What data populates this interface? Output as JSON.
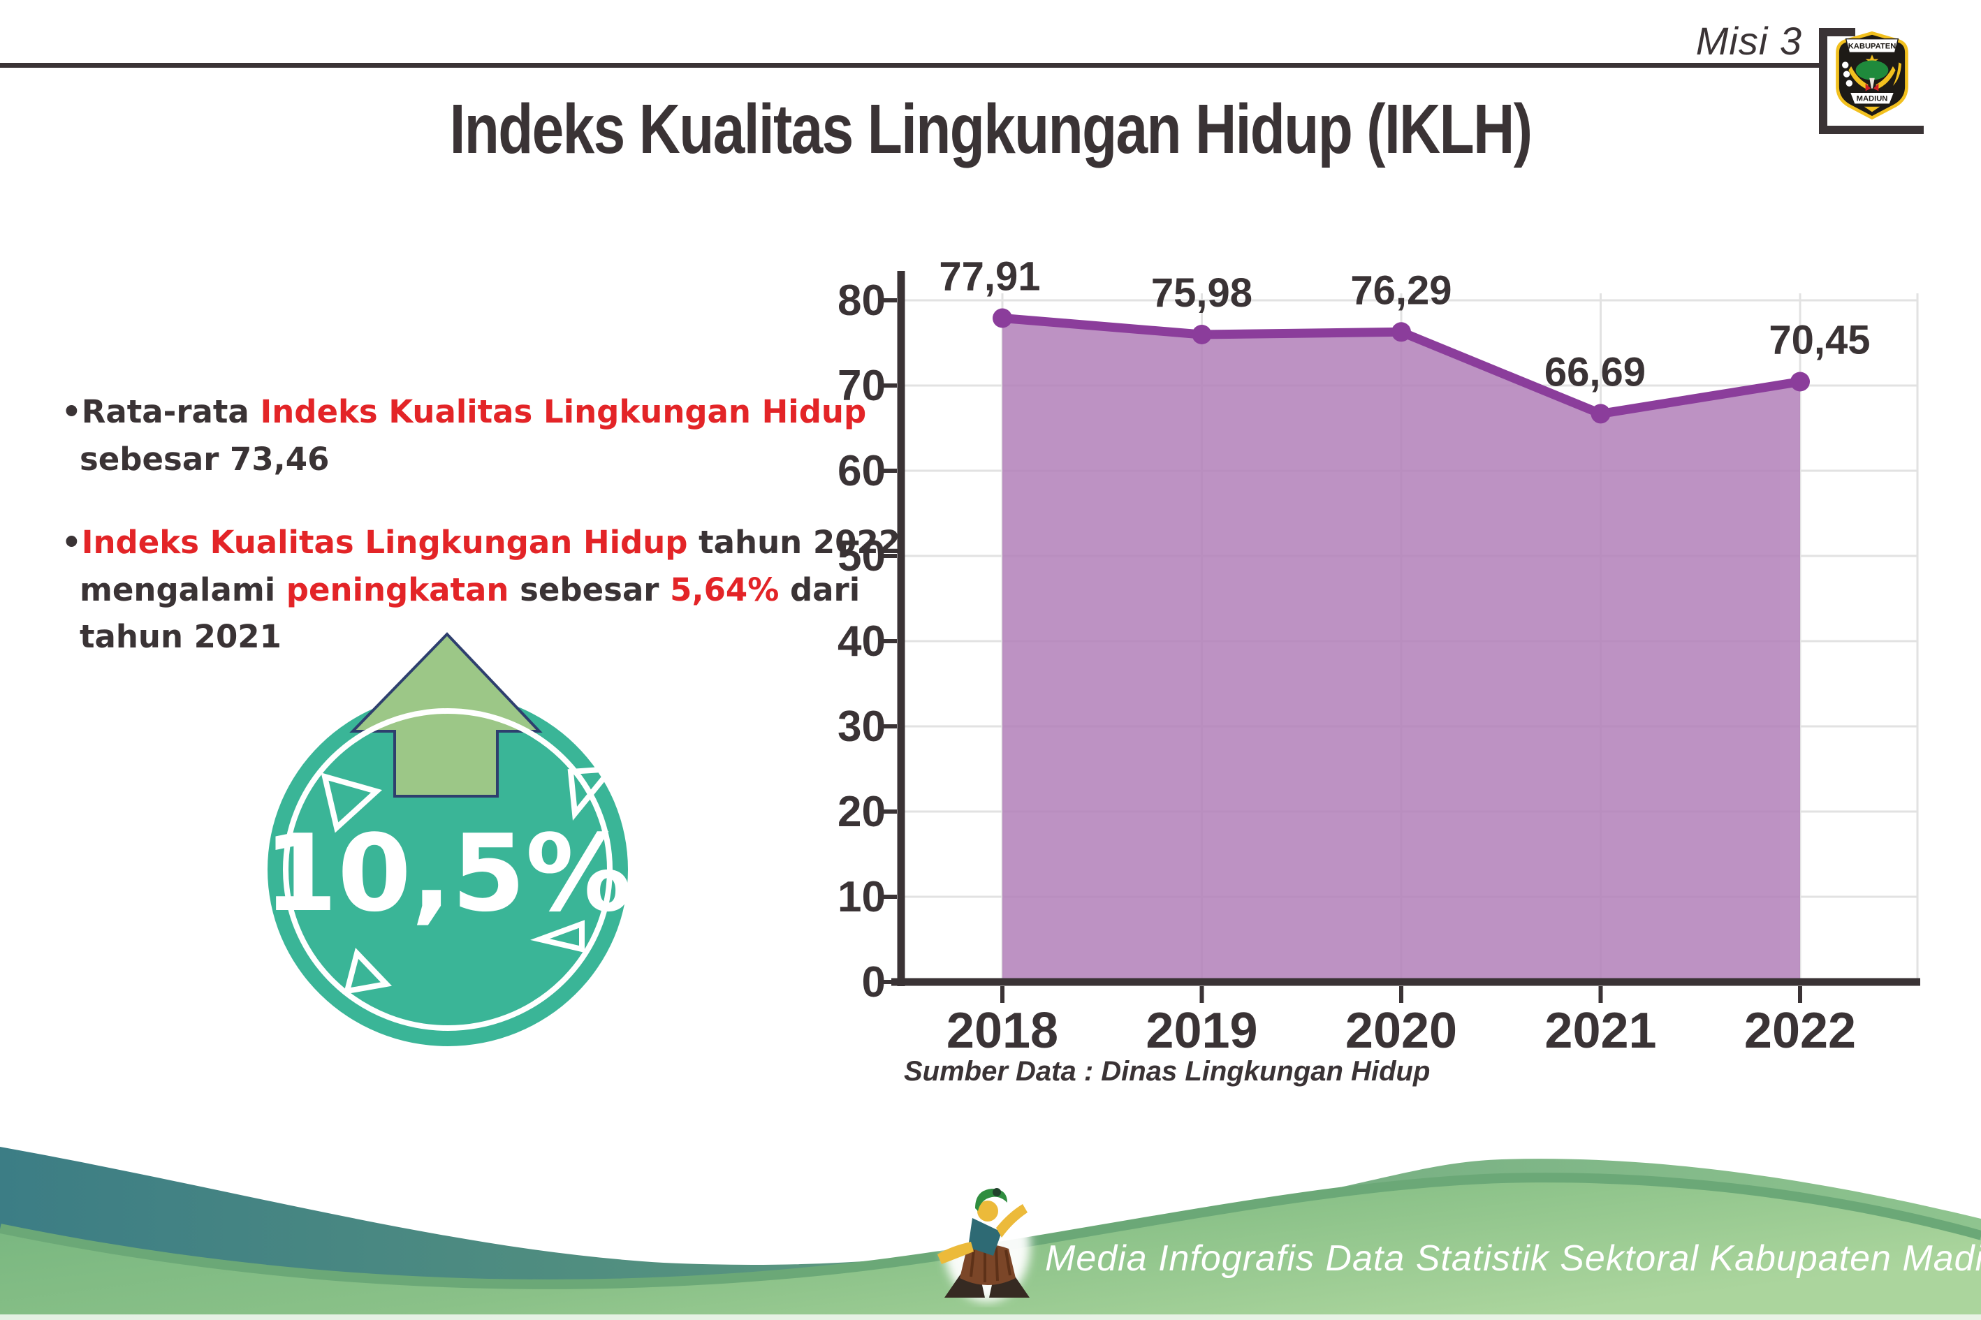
{
  "page": {
    "misi": "Misi 3",
    "title": "Indeks Kualitas Lingkungan Hidup (IKLH)"
  },
  "logo": {
    "top": "KABUPATEN",
    "bottom": "MADIUN"
  },
  "bullets": {
    "bullet_char": "•",
    "items": [
      {
        "lines": [
          [
            {
              "t": "Rata-rata ",
              "c": "dark"
            },
            {
              "t": "Indeks Kualitas Lingkungan Hidup",
              "c": "red"
            }
          ],
          [
            {
              "t": "sebesar 73,46",
              "c": "dark"
            }
          ]
        ]
      },
      {
        "lines": [
          [
            {
              "t": "Indeks Kualitas Lingkungan Hidup",
              "c": "red"
            },
            {
              "t": " tahun 2022",
              "c": "dark"
            }
          ],
          [
            {
              "t": "mengalami ",
              "c": "dark"
            },
            {
              "t": "peningkatan",
              "c": "red"
            },
            {
              "t": " sebesar ",
              "c": "dark"
            },
            {
              "t": "5,64%",
              "c": "red"
            },
            {
              "t": " dari",
              "c": "dark"
            }
          ],
          [
            {
              "t": "tahun 2021",
              "c": "dark"
            }
          ]
        ]
      }
    ]
  },
  "badge": {
    "percent": "10,5%",
    "circle_color": "#3ab597",
    "arrow_color": "#9cc787",
    "arrow_outline": "#2e3f6e"
  },
  "chart_data": {
    "type": "area",
    "title": "",
    "categories": [
      "2018",
      "2019",
      "2020",
      "2021",
      "2022"
    ],
    "values": [
      77.91,
      75.98,
      76.29,
      66.69,
      70.45
    ],
    "value_labels": [
      "77,91",
      "75,98",
      "76,29",
      "66,69",
      "70,45"
    ],
    "yticks": [
      0,
      10,
      20,
      30,
      40,
      50,
      60,
      70,
      80
    ],
    "ylim": [
      0,
      85
    ],
    "xlabel": "",
    "ylabel": "",
    "grid": "on",
    "legend": "none",
    "line_color": "#8b3d9b",
    "fill_color": "#b27fb9",
    "axis_color": "#3a3335",
    "grid_color": "#e2e2e2",
    "source_note": "Sumber Data : Dinas Lingkungan Hidup"
  },
  "footer": {
    "credit": "Media Infografis Data Statistik Sektoral Kabupaten Madiun |",
    "teal": "#3c7d85",
    "green_light": "#a9d49c"
  },
  "colors": {
    "text_dark": "#3a3335",
    "text_red": "#e32427"
  }
}
